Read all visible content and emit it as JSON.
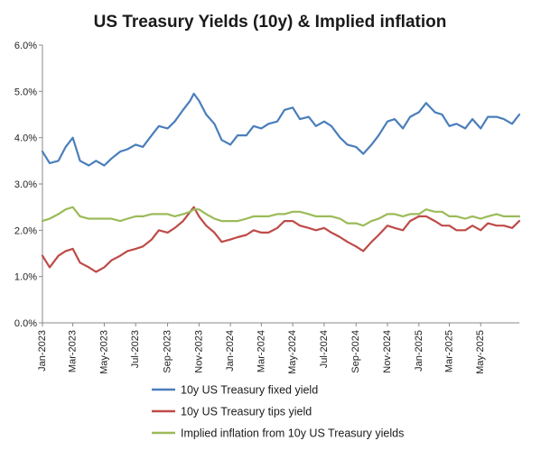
{
  "chart_data": {
    "type": "line",
    "title": "US Treasury Yields (10y) & Implied inflation",
    "xlabel": "",
    "ylabel": "",
    "ylim": [
      0,
      6
    ],
    "y_ticks": [
      "0.0%",
      "1.0%",
      "2.0%",
      "3.0%",
      "4.0%",
      "5.0%",
      "6.0%"
    ],
    "x_range": [
      "2023-01-01",
      "2025-07-15"
    ],
    "x_ticks": [
      "Jan-2023",
      "Mar-2023",
      "May-2023",
      "Jul-2023",
      "Sep-2023",
      "Nov-2023",
      "Jan-2024",
      "Mar-2024",
      "May-2024",
      "Jul-2024",
      "Sep-2024",
      "Nov-2024",
      "Jan-2025",
      "Mar-2025",
      "May-2025"
    ],
    "x_tick_dates": [
      "2023-01-01",
      "2023-03-01",
      "2023-05-01",
      "2023-07-01",
      "2023-09-01",
      "2023-11-01",
      "2024-01-01",
      "2024-03-01",
      "2024-05-01",
      "2024-07-01",
      "2024-09-01",
      "2024-11-01",
      "2025-01-01",
      "2025-03-01",
      "2025-05-01"
    ],
    "grid": {
      "horizontal": false,
      "vertical": false
    },
    "legend_position": "bottom",
    "series": [
      {
        "name": "10y US Treasury fixed yield",
        "color": "#4a7ebb",
        "x": [
          "2023-01-01",
          "2023-01-15",
          "2023-02-01",
          "2023-02-15",
          "2023-03-01",
          "2023-03-15",
          "2023-04-01",
          "2023-04-15",
          "2023-05-01",
          "2023-05-15",
          "2023-06-01",
          "2023-06-15",
          "2023-07-01",
          "2023-07-15",
          "2023-08-01",
          "2023-08-15",
          "2023-09-01",
          "2023-09-15",
          "2023-10-01",
          "2023-10-15",
          "2023-10-22",
          "2023-11-01",
          "2023-11-15",
          "2023-12-01",
          "2023-12-15",
          "2024-01-01",
          "2024-01-15",
          "2024-02-01",
          "2024-02-15",
          "2024-03-01",
          "2024-03-15",
          "2024-04-01",
          "2024-04-15",
          "2024-05-01",
          "2024-05-15",
          "2024-06-01",
          "2024-06-15",
          "2024-07-01",
          "2024-07-15",
          "2024-08-01",
          "2024-08-15",
          "2024-09-01",
          "2024-09-15",
          "2024-10-01",
          "2024-10-15",
          "2024-11-01",
          "2024-11-15",
          "2024-12-01",
          "2024-12-15",
          "2025-01-01",
          "2025-01-15",
          "2025-02-01",
          "2025-02-15",
          "2025-03-01",
          "2025-03-15",
          "2025-04-01",
          "2025-04-15",
          "2025-05-01",
          "2025-05-15",
          "2025-06-01",
          "2025-06-15",
          "2025-07-01",
          "2025-07-15"
        ],
        "values": [
          3.7,
          3.45,
          3.5,
          3.8,
          4.0,
          3.5,
          3.4,
          3.5,
          3.4,
          3.55,
          3.7,
          3.75,
          3.85,
          3.8,
          4.05,
          4.25,
          4.2,
          4.35,
          4.6,
          4.8,
          4.95,
          4.8,
          4.5,
          4.3,
          3.95,
          3.85,
          4.05,
          4.05,
          4.25,
          4.2,
          4.3,
          4.35,
          4.6,
          4.65,
          4.4,
          4.45,
          4.25,
          4.35,
          4.25,
          4.0,
          3.85,
          3.8,
          3.65,
          3.85,
          4.05,
          4.35,
          4.4,
          4.2,
          4.45,
          4.55,
          4.75,
          4.55,
          4.5,
          4.25,
          4.3,
          4.2,
          4.4,
          4.2,
          4.45,
          4.45,
          4.4,
          4.3,
          4.5
        ]
      },
      {
        "name": "10y US Treasury tips yield",
        "color": "#be4b48",
        "x": [
          "2023-01-01",
          "2023-01-15",
          "2023-02-01",
          "2023-02-15",
          "2023-03-01",
          "2023-03-15",
          "2023-04-01",
          "2023-04-15",
          "2023-05-01",
          "2023-05-15",
          "2023-06-01",
          "2023-06-15",
          "2023-07-01",
          "2023-07-15",
          "2023-08-01",
          "2023-08-15",
          "2023-09-01",
          "2023-09-15",
          "2023-10-01",
          "2023-10-15",
          "2023-10-22",
          "2023-11-01",
          "2023-11-15",
          "2023-12-01",
          "2023-12-15",
          "2024-01-01",
          "2024-01-15",
          "2024-02-01",
          "2024-02-15",
          "2024-03-01",
          "2024-03-15",
          "2024-04-01",
          "2024-04-15",
          "2024-05-01",
          "2024-05-15",
          "2024-06-01",
          "2024-06-15",
          "2024-07-01",
          "2024-07-15",
          "2024-08-01",
          "2024-08-15",
          "2024-09-01",
          "2024-09-15",
          "2024-10-01",
          "2024-10-15",
          "2024-11-01",
          "2024-11-15",
          "2024-12-01",
          "2024-12-15",
          "2025-01-01",
          "2025-01-15",
          "2025-02-01",
          "2025-02-15",
          "2025-03-01",
          "2025-03-15",
          "2025-04-01",
          "2025-04-15",
          "2025-05-01",
          "2025-05-15",
          "2025-06-01",
          "2025-06-15",
          "2025-07-01",
          "2025-07-15"
        ],
        "values": [
          1.45,
          1.2,
          1.45,
          1.55,
          1.6,
          1.3,
          1.2,
          1.1,
          1.2,
          1.35,
          1.45,
          1.55,
          1.6,
          1.65,
          1.8,
          2.0,
          1.95,
          2.05,
          2.2,
          2.4,
          2.5,
          2.3,
          2.1,
          1.95,
          1.75,
          1.8,
          1.85,
          1.9,
          2.0,
          1.95,
          1.95,
          2.05,
          2.2,
          2.2,
          2.1,
          2.05,
          2.0,
          2.05,
          1.95,
          1.85,
          1.75,
          1.65,
          1.55,
          1.75,
          1.9,
          2.1,
          2.05,
          2.0,
          2.2,
          2.3,
          2.3,
          2.2,
          2.1,
          2.1,
          2.0,
          2.0,
          2.1,
          2.0,
          2.15,
          2.1,
          2.1,
          2.05,
          2.2
        ]
      },
      {
        "name": "Implied inflation from 10y US Treasury yields",
        "color": "#9bbb59",
        "x": [
          "2023-01-01",
          "2023-01-15",
          "2023-02-01",
          "2023-02-15",
          "2023-03-01",
          "2023-03-15",
          "2023-04-01",
          "2023-04-15",
          "2023-05-01",
          "2023-05-15",
          "2023-06-01",
          "2023-06-15",
          "2023-07-01",
          "2023-07-15",
          "2023-08-01",
          "2023-08-15",
          "2023-09-01",
          "2023-09-15",
          "2023-10-01",
          "2023-10-15",
          "2023-10-22",
          "2023-11-01",
          "2023-11-15",
          "2023-12-01",
          "2023-12-15",
          "2024-01-01",
          "2024-01-15",
          "2024-02-01",
          "2024-02-15",
          "2024-03-01",
          "2024-03-15",
          "2024-04-01",
          "2024-04-15",
          "2024-05-01",
          "2024-05-15",
          "2024-06-01",
          "2024-06-15",
          "2024-07-01",
          "2024-07-15",
          "2024-08-01",
          "2024-08-15",
          "2024-09-01",
          "2024-09-15",
          "2024-10-01",
          "2024-10-15",
          "2024-11-01",
          "2024-11-15",
          "2024-12-01",
          "2024-12-15",
          "2025-01-01",
          "2025-01-15",
          "2025-02-01",
          "2025-02-15",
          "2025-03-01",
          "2025-03-15",
          "2025-04-01",
          "2025-04-15",
          "2025-05-01",
          "2025-05-15",
          "2025-06-01",
          "2025-06-15",
          "2025-07-01",
          "2025-07-15"
        ],
        "values": [
          2.2,
          2.25,
          2.35,
          2.45,
          2.5,
          2.3,
          2.25,
          2.25,
          2.25,
          2.25,
          2.2,
          2.25,
          2.3,
          2.3,
          2.35,
          2.35,
          2.35,
          2.3,
          2.35,
          2.4,
          2.45,
          2.45,
          2.35,
          2.25,
          2.2,
          2.2,
          2.2,
          2.25,
          2.3,
          2.3,
          2.3,
          2.35,
          2.35,
          2.4,
          2.4,
          2.35,
          2.3,
          2.3,
          2.3,
          2.25,
          2.15,
          2.15,
          2.1,
          2.2,
          2.25,
          2.35,
          2.35,
          2.3,
          2.35,
          2.35,
          2.45,
          2.4,
          2.4,
          2.3,
          2.3,
          2.25,
          2.3,
          2.25,
          2.3,
          2.35,
          2.3,
          2.3,
          2.3
        ]
      }
    ]
  }
}
